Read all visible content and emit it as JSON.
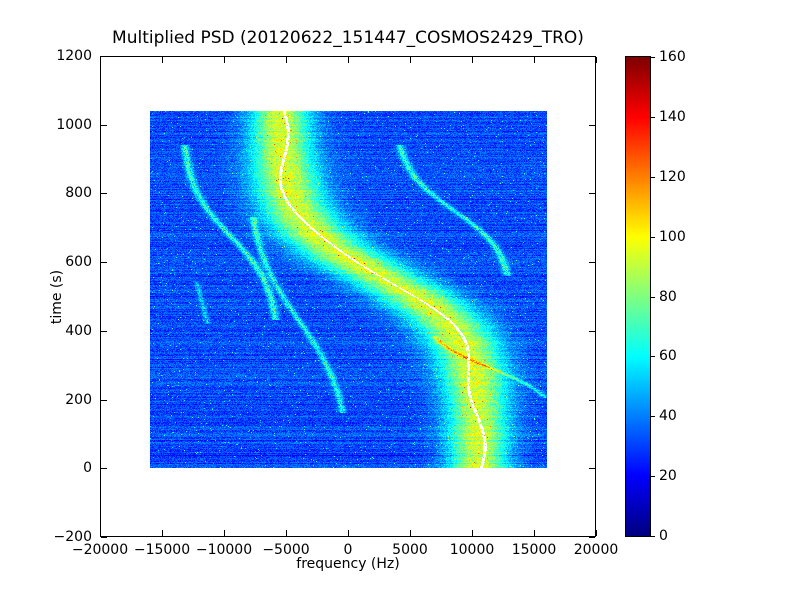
{
  "figure": {
    "background_color": "#ffffff"
  },
  "chart_data": {
    "type": "heatmap",
    "title": "Multiplied PSD (20120622_151447_COSMOS2429_TRO)",
    "xlabel": "frequency (Hz)",
    "ylabel": "time (s)",
    "xlim": [
      -20000,
      20000
    ],
    "ylim": [
      -200,
      1200
    ],
    "xticks": [
      -20000,
      -15000,
      -10000,
      -5000,
      0,
      5000,
      10000,
      15000,
      20000
    ],
    "yticks": [
      -200,
      0,
      200,
      400,
      600,
      800,
      1000,
      1200
    ],
    "extent": {
      "x": [
        -16000,
        16000
      ],
      "y": [
        0,
        1040
      ]
    },
    "grid": false,
    "colormap": "jet",
    "colorbar": {
      "min": 0,
      "max": 160,
      "ticks": [
        0,
        20,
        40,
        60,
        80,
        100,
        120,
        140,
        160
      ],
      "position": "right"
    },
    "background_psd_level": 30,
    "doppler_track": {
      "description": "Bright S-shaped Doppler band sweeping from about +10500 Hz at t=0 s to about -5500 Hz at t=1040 s, with a thin saturated white ridge along its center",
      "center_hz": 2500,
      "amplitude_hz": 8000,
      "t_mid_s": 560,
      "tau_s": 160,
      "band_sigma_hz": 1700,
      "band_peak_level": 95,
      "ridge_level": "saturated-white",
      "samples": [
        {
          "t": 0,
          "f": 10500
        },
        {
          "t": 200,
          "f": 10300
        },
        {
          "t": 400,
          "f": 8600
        },
        {
          "t": 560,
          "f": 2500
        },
        {
          "t": 700,
          "f": -3100
        },
        {
          "t": 900,
          "f": -5300
        },
        {
          "t": 1040,
          "f": -5500
        }
      ]
    },
    "secondary_tracks": [
      {
        "center_hz": -9500,
        "amplitude_hz": 3900,
        "t_mid_s": 675,
        "tau_s": 150,
        "t_range": [
          430,
          940
        ],
        "sigma_hz": 220,
        "level": 34
      },
      {
        "center_hz": -4000,
        "amplitude_hz": 4200,
        "t_mid_s": 430,
        "tau_s": 220,
        "t_range": [
          160,
          730
        ],
        "sigma_hz": 200,
        "level": 30
      },
      {
        "center_hz": 8500,
        "amplitude_hz": 4700,
        "t_mid_s": 750,
        "tau_s": 120,
        "t_range": [
          560,
          940
        ],
        "sigma_hz": 220,
        "level": 34
      },
      {
        "center_hz": 11500,
        "amplitude_hz": 5500,
        "t_mid_s": 290,
        "tau_s": 80,
        "t_range": [
          205,
          385
        ],
        "sigma_hz": 200,
        "level": 28
      },
      {
        "center_hz": -11800,
        "amplitude_hz": 1500,
        "t_mid_s": 480,
        "tau_s": 200,
        "t_range": [
          420,
          545
        ],
        "sigma_hz": 150,
        "level": 20
      }
    ]
  }
}
